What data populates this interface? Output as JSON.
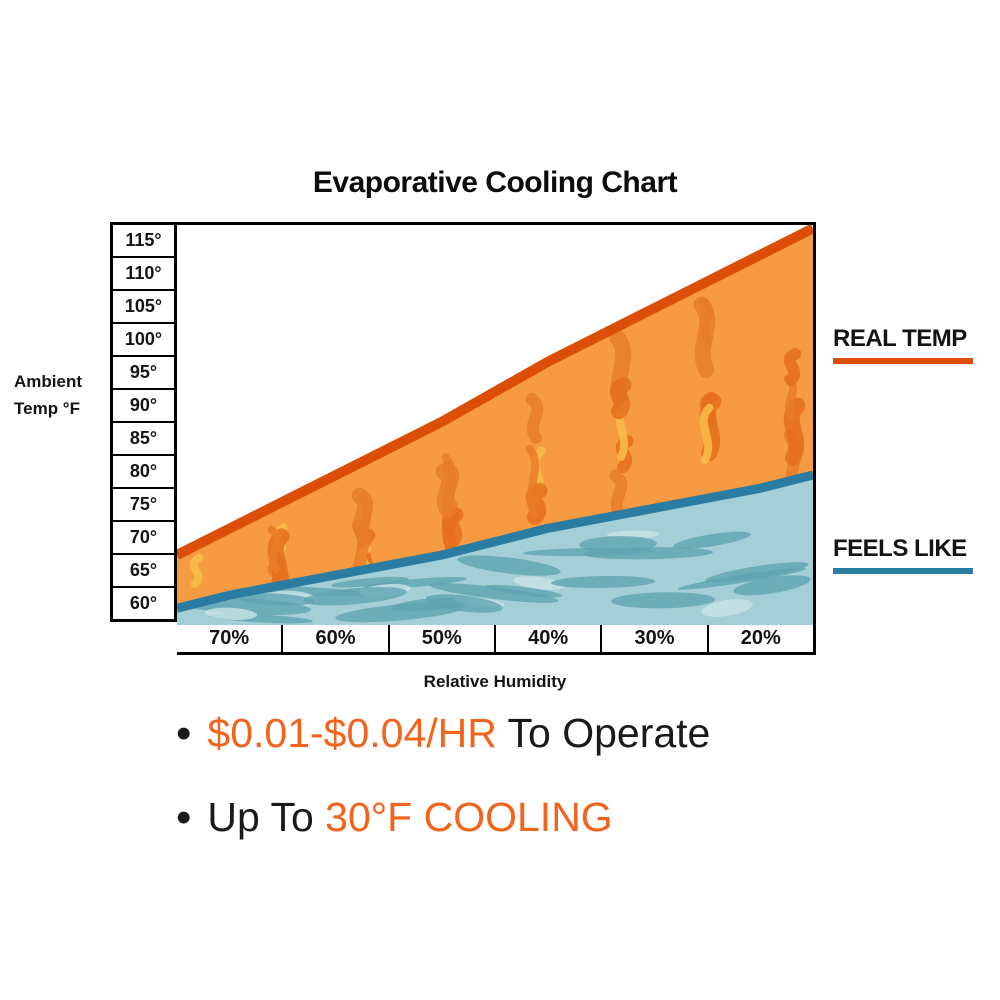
{
  "title": "Evaporative Cooling Chart",
  "labels": {
    "ambient_line1": "Ambient",
    "ambient_line2": "Temp °F",
    "humidity": "Relative Humidity"
  },
  "legend": {
    "real_temp": "REAL TEMP",
    "feels_like": "FEELS LIKE"
  },
  "bullets": {
    "glyph": "•",
    "line1": {
      "highlight": "$0.01-$0.04/HR",
      "rest": " To Operate"
    },
    "line2": {
      "lead": "Up To ",
      "highlight": "30°F COOLING"
    }
  },
  "colors": {
    "orange_fill": "#F79B43",
    "orange_line": "#DC4E07",
    "flame_dark1": "#E77C28",
    "flame_dark2": "#E46F1C",
    "flame_yellow": "#F9BE4B",
    "blue_fill": "#A5CFD6",
    "blue_line": "#2A7CA3",
    "wave_dark": "#5FA3B2",
    "wave_light": "#C9E4E6",
    "accent_text": "#F2641C",
    "text": "#141414"
  },
  "chart_data": {
    "type": "area",
    "title": "Evaporative Cooling Chart",
    "xlabel": "Relative Humidity",
    "ylabel": "Ambient Temp °F",
    "categories": [
      "70%",
      "60%",
      "50%",
      "40%",
      "30%",
      "20%"
    ],
    "y_ticks": [
      "115°",
      "110°",
      "105°",
      "100°",
      "95°",
      "90°",
      "85°",
      "80°",
      "75°",
      "70°",
      "65°",
      "60°"
    ],
    "y_range": [
      57.5,
      117.5
    ],
    "grid": true,
    "legend_position": "right",
    "series": [
      {
        "name": "REAL TEMP",
        "color": "#DC4E07",
        "values": [
          72,
          80,
          88,
          97,
          105,
          113
        ],
        "left_edge": 68,
        "right_edge": 117
      },
      {
        "name": "FEELS LIKE",
        "color": "#2A7CA3",
        "values": [
          62,
          65,
          68,
          72,
          75,
          78
        ],
        "left_edge": 60,
        "right_edge": 80
      }
    ]
  }
}
